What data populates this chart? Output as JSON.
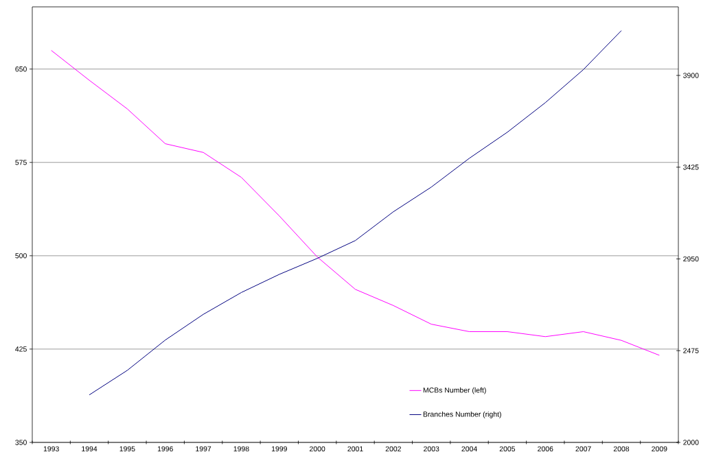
{
  "chart_data": {
    "type": "line",
    "categories": [
      "1993",
      "1994",
      "1995",
      "1996",
      "1997",
      "1998",
      "1999",
      "2000",
      "2001",
      "2002",
      "2003",
      "2004",
      "2005",
      "2006",
      "2007",
      "2008",
      "2009"
    ],
    "series": [
      {
        "name": "MCBs Number (left)",
        "color": "#ff00ff",
        "values": [
          665,
          641,
          618,
          590,
          583,
          563,
          532,
          499,
          473,
          460,
          445,
          439,
          439,
          435,
          439,
          432,
          420
        ]
      },
      {
        "name": "Branches Number (right)",
        "color": "#000080",
        "axis": "y2",
        "values": [
          null,
          2246,
          2373,
          2530,
          2663,
          2776,
          2870,
          2953,
          3045,
          3194,
          3322,
          3471,
          3606,
          3759,
          3930,
          4132,
          null
        ]
      }
    ],
    "ylim": [
      350,
      700
    ],
    "yticks": [
      350,
      425,
      500,
      575,
      650
    ],
    "y2lim": [
      2000,
      4255
    ],
    "y2ticks": [
      2000,
      2475,
      2950,
      3425,
      3900
    ],
    "grid": "y",
    "legend": "bottom right",
    "marker": "none",
    "line_style": "solid"
  }
}
